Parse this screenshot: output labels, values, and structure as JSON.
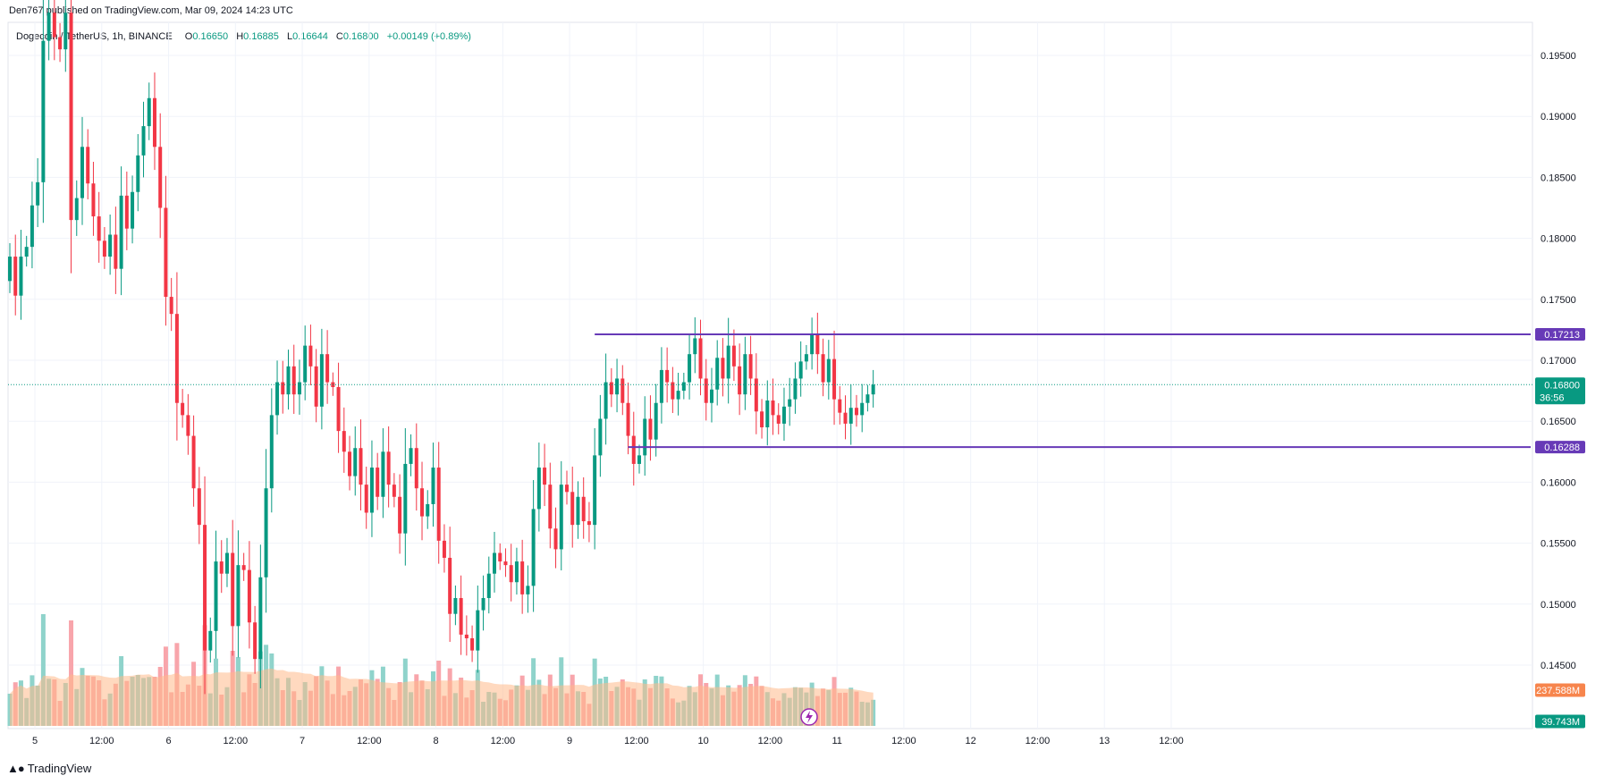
{
  "header": {
    "published_text": "Den767 published on TradingView.com, Mar 09, 2024 14:23 UTC"
  },
  "legend": {
    "symbol": "Dogecoin / TetherUS, 1h, BINANCE",
    "o_label": "O",
    "o_value": "0.16650",
    "h_label": "H",
    "h_value": "0.16885",
    "l_label": "L",
    "l_value": "0.16644",
    "c_label": "C",
    "c_value": "0.16800",
    "change": "+0.00149 (+0.89%)"
  },
  "footer": {
    "brand": "TradingView"
  },
  "colors": {
    "up": "#089981",
    "down": "#f23645",
    "vol_up": "#8fd3cb",
    "vol_down": "#f8a5ab",
    "vol_ma": "#ffb98a",
    "level": "#673ab7",
    "grid": "#f0f3fa",
    "price_badge": "#089981",
    "vol_badge": "#f7854d"
  },
  "chart_data": {
    "type": "candlestick",
    "title": "Dogecoin / TetherUS, 1h, BINANCE",
    "ylim": [
      0.141,
      0.1985
    ],
    "y_ticks": [
      "0.19500",
      "0.19000",
      "0.18500",
      "0.18000",
      "0.17500",
      "0.17000",
      "0.16500",
      "0.16000",
      "0.15500",
      "0.15000",
      "0.14500"
    ],
    "y_tick_values": [
      0.195,
      0.19,
      0.185,
      0.18,
      0.175,
      0.17,
      0.165,
      0.16,
      0.155,
      0.15,
      0.145
    ],
    "x_ticks": [
      {
        "label": "5",
        "bar": 4.5
      },
      {
        "label": "12:00",
        "bar": 16.5
      },
      {
        "label": "6",
        "bar": 28.5
      },
      {
        "label": "12:00",
        "bar": 40.5
      },
      {
        "label": "7",
        "bar": 52.5
      },
      {
        "label": "12:00",
        "bar": 64.5
      },
      {
        "label": "8",
        "bar": 76.5
      },
      {
        "label": "12:00",
        "bar": 88.5
      },
      {
        "label": "9",
        "bar": 100.5
      },
      {
        "label": "12:00",
        "bar": 112.5
      },
      {
        "label": "10",
        "bar": 124.5
      },
      {
        "label": "12:00",
        "bar": 136.5
      },
      {
        "label": "11",
        "bar": 148.5
      },
      {
        "label": "12:00",
        "bar": 160.5
      },
      {
        "label": "12",
        "bar": 172.5
      },
      {
        "label": "12:00",
        "bar": 184.5
      },
      {
        "label": "13",
        "bar": 196.5
      },
      {
        "label": "12:00",
        "bar": 208.5
      }
    ],
    "last_price": 0.168,
    "last_price_label": "0.16800",
    "countdown": "36:56",
    "levels": [
      {
        "value": 0.17213,
        "label": "0.17213",
        "from_bar": 105
      },
      {
        "value": 0.16288,
        "label": "0.16288",
        "from_bar": 111
      }
    ],
    "volume_ma_label": "237.588M",
    "volume_label": "39.743M",
    "closes": [
      0.1785,
      0.1753,
      0.1785,
      0.1793,
      0.1827,
      0.1846,
      0.1962,
      0.1985,
      0.1965,
      0.1955,
      0.1985,
      0.1815,
      0.1833,
      0.1875,
      0.1845,
      0.1818,
      0.1798,
      0.1785,
      0.1803,
      0.1775,
      0.1835,
      0.1808,
      0.1838,
      0.1868,
      0.1892,
      0.1915,
      0.1875,
      0.1825,
      0.1752,
      0.1738,
      0.1665,
      0.1655,
      0.1638,
      0.1595,
      0.1565,
      0.1462,
      0.1478,
      0.1535,
      0.1525,
      0.1542,
      0.1482,
      0.1532,
      0.1528,
      0.1485,
      0.1455,
      0.1522,
      0.1595,
      0.1655,
      0.1682,
      0.1672,
      0.1695,
      0.1672,
      0.1682,
      0.1712,
      0.1695,
      0.1662,
      0.1705,
      0.1682,
      0.1678,
      0.1642,
      0.1625,
      0.1605,
      0.1628,
      0.1598,
      0.1575,
      0.1612,
      0.1588,
      0.1625,
      0.1598,
      0.1588,
      0.1558,
      0.1615,
      0.1628,
      0.1595,
      0.1572,
      0.1582,
      0.1612,
      0.1552,
      0.1538,
      0.1492,
      0.1505,
      0.1475,
      0.1472,
      0.1462,
      0.1495,
      0.1505,
      0.1525,
      0.1542,
      0.1535,
      0.1532,
      0.1518,
      0.1535,
      0.1508,
      0.1515,
      0.1578,
      0.1612,
      0.1598,
      0.1562,
      0.1545,
      0.1598,
      0.1592,
      0.1565,
      0.1588,
      0.1568,
      0.1565,
      0.1622,
      0.1652,
      0.1682,
      0.1672,
      0.1685,
      0.1665,
      0.1638,
      0.1615,
      0.1622,
      0.1652,
      0.1635,
      0.1665,
      0.1692,
      0.1682,
      0.1668,
      0.1675,
      0.1682,
      0.1705,
      0.1718,
      0.1685,
      0.1665,
      0.1676,
      0.1702,
      0.1685,
      0.1712,
      0.1695,
      0.1672,
      0.1705,
      0.1685,
      0.1658,
      0.1645,
      0.1667,
      0.1655,
      0.1648,
      0.1662,
      0.1668,
      0.1685,
      0.1699,
      0.1705,
      0.1721,
      0.1705,
      0.1682,
      0.1701,
      0.1668,
      0.1657,
      0.1648,
      0.1661,
      0.1655,
      0.1665,
      0.1672,
      0.168
    ]
  }
}
